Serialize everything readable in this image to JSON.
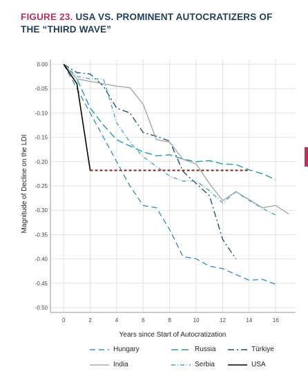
{
  "figure": {
    "label": "FIGURE 23.",
    "title": "USA VS. PROMINENT AUTOCRATIZERS OF THE “THIRD WAVE”"
  },
  "chart_data": {
    "type": "line",
    "xlabel": "Years since Start of Autocratization",
    "ylabel": "Magnitude of Decline on the LDI",
    "xlim": [
      -1,
      17.5
    ],
    "ylim": [
      -0.51,
      0.01
    ],
    "x_ticks": [
      0,
      2,
      4,
      6,
      8,
      10,
      12,
      14,
      16
    ],
    "y_ticks": [
      0.0,
      -0.05,
      -0.1,
      -0.15,
      -0.2,
      -0.25,
      -0.3,
      -0.35,
      -0.4,
      -0.45,
      -0.5
    ],
    "y_tick_labels": [
      "0.00",
      "-0.05",
      "-0.10",
      "-0.15",
      "-0.20",
      "-0.25",
      "-0.30",
      "-0.35",
      "-0.40",
      "-0.45",
      "-0.50"
    ],
    "grid": true,
    "legend_position": "bottom",
    "series": [
      {
        "name": "Hungary",
        "color": "#3a8fc8",
        "dash": "8,5",
        "x": [
          0,
          1,
          2,
          3,
          4,
          5,
          6,
          7,
          8,
          9,
          10,
          11,
          12,
          13,
          14,
          15,
          16
        ],
        "y": [
          0.0,
          -0.05,
          -0.1,
          -0.15,
          -0.2,
          -0.25,
          -0.29,
          -0.295,
          -0.34,
          -0.395,
          -0.4,
          -0.415,
          -0.42,
          -0.432,
          -0.444,
          -0.442,
          -0.452
        ]
      },
      {
        "name": "Russia",
        "color": "#1b9aa8",
        "dash": "10,5",
        "x": [
          0,
          1,
          2,
          3,
          4,
          5,
          6,
          7,
          8,
          9,
          10,
          11,
          12,
          13,
          14,
          15,
          16
        ],
        "y": [
          0.0,
          -0.03,
          -0.09,
          -0.125,
          -0.155,
          -0.168,
          -0.18,
          -0.188,
          -0.186,
          -0.195,
          -0.2,
          -0.198,
          -0.205,
          -0.206,
          -0.217,
          -0.225,
          -0.237
        ]
      },
      {
        "name": "Türkiye",
        "color": "#1d4f7a",
        "dash": "9,4,2,4",
        "x": [
          0,
          1,
          2,
          3,
          4,
          5,
          6,
          7,
          8,
          9,
          10,
          11,
          12,
          13
        ],
        "y": [
          0.0,
          -0.017,
          -0.02,
          -0.045,
          -0.09,
          -0.1,
          -0.14,
          -0.148,
          -0.158,
          -0.22,
          -0.245,
          -0.27,
          -0.36,
          -0.4
        ]
      },
      {
        "name": "India",
        "color": "#a8a8a8",
        "dash": "",
        "x": [
          0,
          1,
          2,
          3,
          4,
          5,
          6,
          7,
          8,
          9,
          10,
          11,
          12,
          13,
          14,
          15,
          16,
          17
        ],
        "y": [
          0.0,
          -0.03,
          -0.035,
          -0.04,
          -0.045,
          -0.048,
          -0.082,
          -0.155,
          -0.16,
          -0.195,
          -0.205,
          -0.245,
          -0.28,
          -0.262,
          -0.278,
          -0.295,
          -0.29,
          -0.308
        ]
      },
      {
        "name": "Serbia",
        "color": "#4aa6c9",
        "dash": "6,3,1,3",
        "x": [
          0,
          1,
          2,
          3,
          4,
          5,
          6,
          7,
          8,
          9,
          10,
          11,
          12,
          13,
          14,
          15,
          16
        ],
        "y": [
          0.0,
          -0.025,
          -0.03,
          -0.03,
          -0.12,
          -0.16,
          -0.19,
          -0.21,
          -0.23,
          -0.24,
          -0.24,
          -0.26,
          -0.285,
          -0.262,
          -0.28,
          -0.296,
          -0.31
        ]
      },
      {
        "name": "USA",
        "color": "#000000",
        "dash": "",
        "x": [
          0,
          1,
          2
        ],
        "y": [
          0.0,
          -0.04,
          -0.218
        ]
      }
    ],
    "reference_line": {
      "x": [
        2,
        14
      ],
      "y": -0.218,
      "color": "#8b1a1a"
    }
  }
}
